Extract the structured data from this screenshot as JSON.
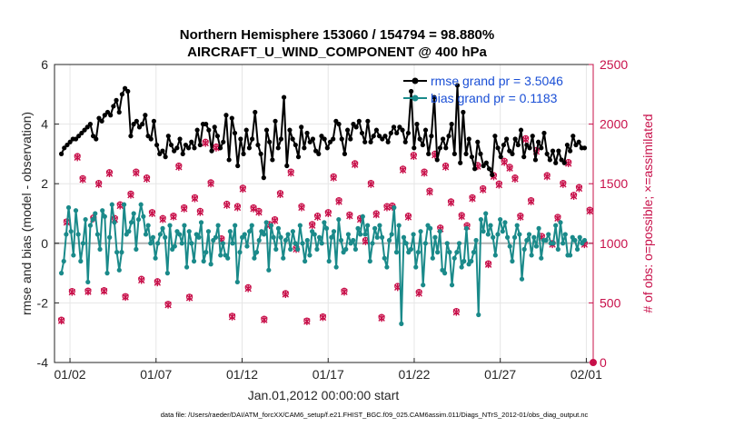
{
  "chart_data": {
    "type": "line",
    "title": "Northern Hemisphere 153060 / 154794 = 98.880%",
    "subtitle": "AIRCRAFT_U_WIND_COMPONENT @ 400 hPa",
    "xlabel": "Jan.01,2012 00:00:00 start",
    "ylabel": "rmse and bias (model - observation)",
    "y2label": "# of obs: o=possible; ×=assimilated",
    "footnote": "data file: /Users/raeder/DAI/ATM_forcXX/CAM6_setup/f.e21.FHIST_BGC.f09_025.CAM6assim.011/Diags_NTrS_2012-01/obs_diag_output.nc",
    "xlim": [
      0.6,
      31.9
    ],
    "ylim": [
      -4,
      6
    ],
    "y2lim": [
      0,
      2500
    ],
    "x_ticks": [
      1.5,
      6.5,
      11.5,
      16.5,
      21.5,
      26.5,
      31.5
    ],
    "x_tick_labels": [
      "01/02",
      "01/07",
      "01/12",
      "01/17",
      "01/22",
      "01/27",
      "02/01"
    ],
    "y_ticks": [
      -4,
      -2,
      0,
      2,
      4,
      6
    ],
    "y_tick_labels": [
      "-4",
      "-2",
      "0",
      "2",
      "4",
      "6"
    ],
    "y2_ticks": [
      0,
      500,
      1000,
      1500,
      2000,
      2500
    ],
    "y2_tick_labels": [
      "0",
      "500",
      "1000",
      "1500",
      "2000",
      "2500"
    ],
    "grid": true,
    "legend_position": "top-right",
    "series": [
      {
        "name": "rmse grand pr = 3.5046",
        "color": "#000000",
        "marker": "filled-circle",
        "values": [
          3.0,
          3.2,
          3.3,
          3.4,
          3.5,
          3.5,
          3.6,
          3.7,
          3.8,
          3.9,
          4.0,
          3.6,
          3.5,
          4.2,
          4.1,
          4.3,
          4.4,
          4.3,
          4.6,
          4.8,
          4.4,
          5.0,
          5.2,
          5.1,
          3.6,
          4.0,
          4.1,
          3.9,
          4.0,
          4.3,
          3.6,
          3.5,
          4.1,
          3.3,
          3.0,
          3.1,
          2.9,
          3.6,
          3.3,
          3.1,
          3.2,
          3.5,
          3.0,
          3.3,
          3.2,
          3.4,
          3.2,
          3.8,
          3.3,
          4.0,
          4.0,
          3.8,
          3.1,
          3.9,
          3.6,
          3.2,
          3.4,
          4.3,
          2.8,
          4.2,
          3.7,
          2.6,
          3.5,
          3.0,
          3.8,
          3.2,
          3.5,
          4.4,
          3.3,
          3.0,
          2.2,
          3.8,
          3.4,
          2.8,
          4.1,
          3.2,
          3.5,
          4.9,
          2.6,
          3.8,
          3.5,
          3.3,
          2.9,
          3.9,
          3.2,
          3.7,
          3.4,
          3.5,
          3.1,
          3.0,
          3.6,
          3.5,
          3.2,
          3.4,
          3.5,
          4.1,
          4.0,
          3.5,
          3.0,
          3.8,
          3.5,
          4.0,
          3.9,
          4.1,
          3.7,
          3.4,
          4.1,
          3.4,
          3.6,
          3.8,
          3.6,
          3.5,
          3.6,
          3.4,
          3.7,
          3.9,
          3.7,
          3.9,
          3.8,
          3.4,
          3.7,
          5.1,
          3.2,
          4.0,
          3.5,
          3.3,
          3.8,
          3.0,
          3.6,
          4.9,
          2.8,
          3.2,
          3.5,
          3.2,
          3.6,
          4.0,
          3.0,
          5.3,
          2.7,
          4.4,
          3.0,
          3.5,
          2.9,
          2.5,
          3.4,
          3.0,
          2.6,
          2.7,
          2.5,
          2.3,
          3.6,
          3.2,
          2.9,
          3.3,
          3.5,
          3.1,
          3.0,
          3.5,
          3.3,
          3.8,
          2.9,
          3.3,
          3.2,
          3.6,
          2.8,
          3.4,
          3.2,
          3.7,
          3.0,
          2.8,
          3.1,
          2.7,
          3.1,
          2.8,
          2.7,
          3.3,
          3.1,
          3.6,
          3.3,
          3.4,
          3.2,
          3.2
        ]
      },
      {
        "name": "bias grand pr = 0.1183",
        "color": "#1a8a8a",
        "marker": "filled-circle",
        "values": [
          -1.0,
          -0.6,
          0.3,
          1.2,
          0.4,
          -0.4,
          1.1,
          0.3,
          -0.6,
          0.0,
          0.8,
          -1.3,
          0.6,
          0.8,
          1.0,
          0.3,
          -0.2,
          1.1,
          0.9,
          -1.0,
          0.2,
          1.3,
          0.7,
          -0.3,
          -0.9,
          -0.3,
          1.3,
          0.3,
          0.4,
          0.7,
          1.0,
          -0.2,
          0.8,
          1.3,
          0.9,
          0.3,
          0.6,
          0.0,
          0.2,
          -0.5,
          0.0,
          0.3,
          0.5,
          0.2,
          -1.0,
          0.6,
          -0.2,
          -0.1,
          0.4,
          0.3,
          0.0,
          0.6,
          -0.8,
          0.4,
          0.0,
          -0.6,
          0.3,
          0.2,
          0.7,
          -0.6,
          -0.3,
          0.4,
          -0.7,
          0.1,
          0.2,
          0.6,
          -0.4,
          0.0,
          -0.4,
          -0.5,
          0.4,
          0.0,
          0.6,
          -1.3,
          -0.3,
          0.2,
          0.3,
          -0.1,
          0.4,
          0.6,
          -0.5,
          -0.3,
          0.1,
          0.4,
          0.3,
          0.7,
          -0.9,
          0.6,
          0.2,
          -0.2,
          0.5,
          0.2,
          -0.5,
          0.1,
          0.3,
          -0.2,
          0.4,
          0.0,
          -0.2,
          0.6,
          0.0,
          -0.6,
          0.1,
          -0.4,
          0.4,
          0.3,
          -0.2,
          0.2,
          0.0,
          0.7,
          0.5,
          -0.6,
          0.2,
          0.4,
          -0.8,
          0.8,
          0.1,
          -0.3,
          -0.2,
          0.3,
          0.0,
          0.1,
          -0.2,
          0.5,
          0.3,
          0.9,
          0.3,
          0.6,
          -0.6,
          0.0,
          0.5,
          0.2,
          0.6,
          0.2,
          -0.5,
          -0.8,
          0.1,
          0.3,
          1.2,
          -0.3,
          0.6,
          -2.7,
          0.2,
          0.0,
          -0.3,
          -0.2,
          0.3,
          -0.8,
          -0.3,
          0.4,
          -1.4,
          0.0,
          0.6,
          0.5,
          -0.5,
          0.2,
          -0.3,
          0.4,
          -0.9,
          -1.0,
          0.0,
          -0.3,
          -1.4,
          -0.5,
          -0.3,
          0.0,
          -0.8,
          -0.6,
          0.5,
          -0.7,
          -0.6,
          -0.3,
          0.1,
          -2.4,
          0.8,
          0.4,
          1.0,
          0.3,
          0.6,
          0.2,
          -0.4,
          0.3,
          0.8,
          0.4,
          0.7,
          0.2,
          -0.1,
          -0.6,
          0.2,
          0.6,
          0.3,
          -1.2,
          -0.2,
          0.1,
          0.3,
          -0.4,
          0.2,
          -0.1,
          0.5,
          -0.5,
          0.1,
          0.1,
          0.3,
          0.0,
          0.0,
          0.6,
          -0.2,
          0.7,
          0.0,
          0.3,
          -0.4,
          -0.4,
          0.2,
          0.1,
          -0.2,
          0.2,
          0.0,
          0.1
        ]
      }
    ],
    "obs_possible": [
      357,
      1182,
      598,
      1730,
      1545,
      601,
      1215,
      1505,
      605,
      1595,
      1210,
      1325,
      555,
      1415,
      1600,
      700,
      1550,
      1260,
      680,
      1210,
      490,
      1230,
      1650,
      1300,
      550,
      1385,
      1270,
      1850,
      1510,
      1810,
      1040,
      1330,
      390,
      1310,
      1465,
      630,
      1300,
      1270,
      365,
      1160,
      1200,
      1420,
      580,
      1600,
      960,
      1310,
      350,
      1160,
      1230,
      385,
      1260,
      1560,
      1360,
      600,
      1240,
      1670,
      1210,
      1025,
      1505,
      1250,
      380,
      1310,
      1315,
      640,
      1625,
      1230,
      1740,
      590,
      1600,
      1440,
      1750,
      1130,
      1650,
      1350,
      430,
      1235,
      1150,
      1385,
      1655,
      1460,
      830,
      1570,
      1500,
      1690,
      1640,
      1550,
      1230,
      1880,
      1360,
      1780,
      1060,
      1570,
      1000,
      1220,
      1505,
      1680,
      1405,
      1470,
      1000,
      1280
    ],
    "obs_assimilated": [
      350,
      1175,
      590,
      1720,
      1535,
      594,
      1205,
      1495,
      598,
      1585,
      1200,
      1315,
      548,
      1405,
      1590,
      690,
      1540,
      1250,
      670,
      1200,
      483,
      1222,
      1640,
      1290,
      543,
      1375,
      1260,
      1840,
      1500,
      1800,
      1030,
      1320,
      383,
      1300,
      1455,
      620,
      1290,
      1260,
      358,
      1150,
      1190,
      1410,
      572,
      1590,
      950,
      1300,
      344,
      1150,
      1220,
      378,
      1250,
      1550,
      1350,
      592,
      1230,
      1660,
      1200,
      1015,
      1495,
      1240,
      372,
      1300,
      1305,
      630,
      1615,
      1220,
      1730,
      580,
      1590,
      1430,
      1740,
      1120,
      1640,
      1340,
      422,
      1225,
      1140,
      1375,
      1645,
      1450,
      822,
      1560,
      1490,
      1680,
      1630,
      1540,
      1220,
      1870,
      1350,
      1770,
      1050,
      1560,
      990,
      1210,
      1495,
      1670,
      1395,
      1460,
      990,
      1270
    ]
  }
}
